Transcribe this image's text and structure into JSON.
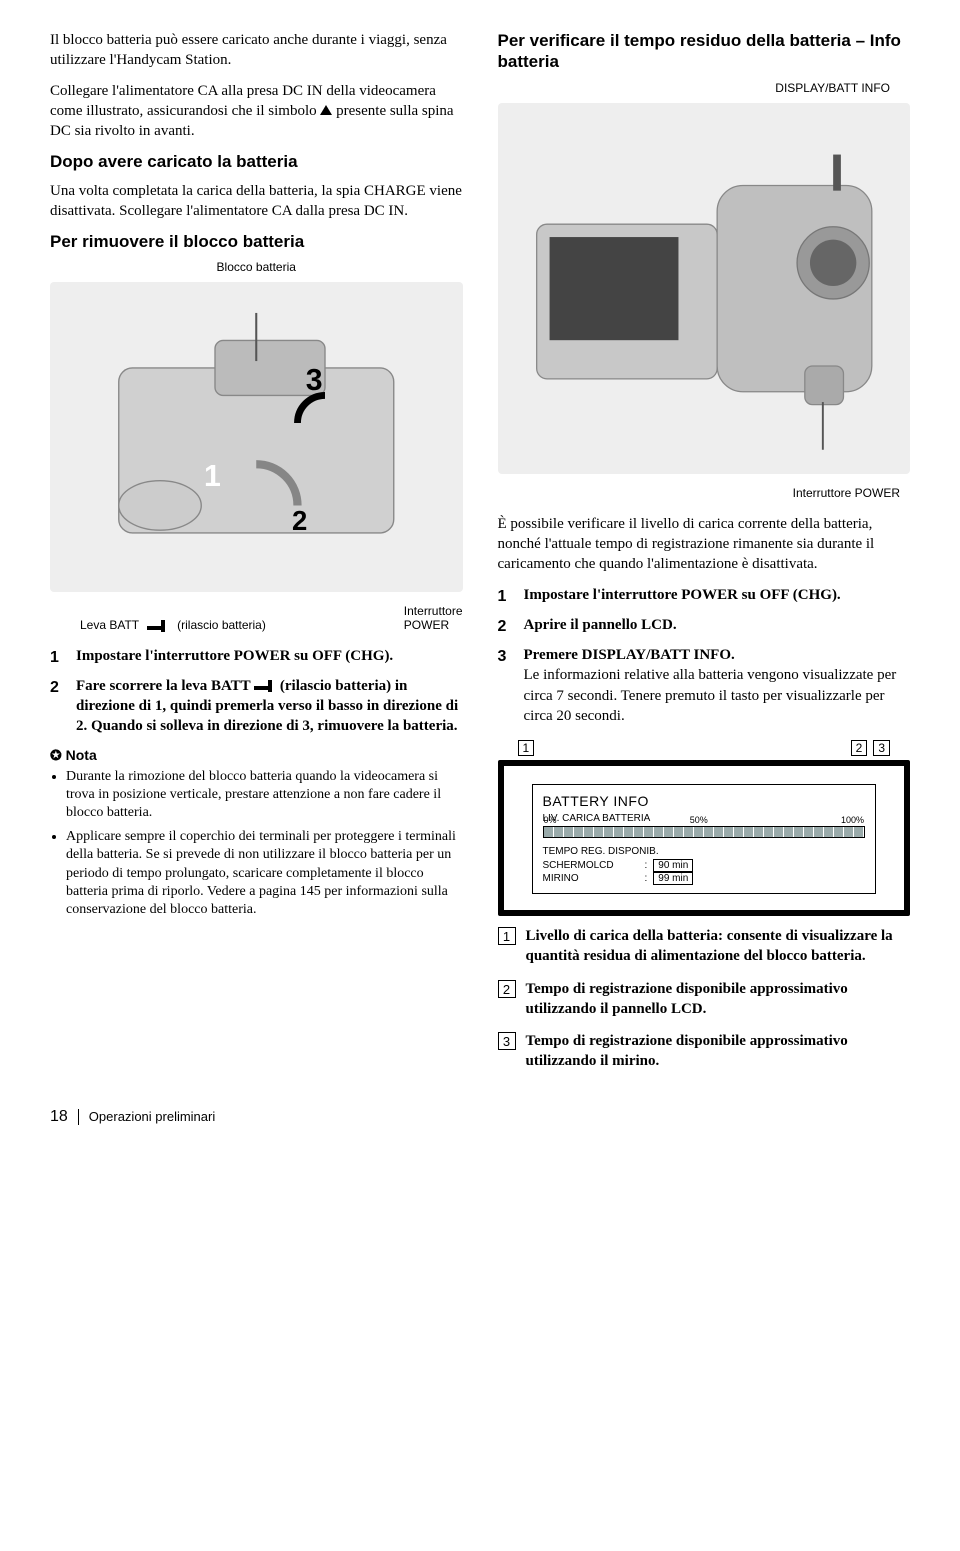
{
  "left": {
    "p1": "Il blocco batteria può essere caricato anche durante i viaggi, senza utilizzare l'Handycam Station.",
    "p2a": "Collegare l'alimentatore CA alla presa DC IN della videocamera come illustrato, assicurandosi che il simbolo ",
    "p2b": " presente sulla spina DC sia rivolto in avanti.",
    "h1": "Dopo avere caricato la batteria",
    "p3": "Una volta completata la carica della batteria, la spia CHARGE viene disattivata. Scollegare l'alimentatore CA dalla presa DC IN.",
    "h2": "Per rimuovere il blocco batteria",
    "cap1": "Blocco batteria",
    "imgText": "",
    "lab_power": "Interruttore\nPOWER",
    "lab_leva": "Leva BATT",
    "lab_rilascio": "(rilascio batteria)",
    "overlay3": "3",
    "overlay1": "1",
    "overlay2": "2",
    "step1": "Impostare l'interruttore POWER su OFF (CHG).",
    "step2a": "Fare scorrere la leva BATT ",
    "step2b": " (rilascio batteria) in direzione di 1, quindi premerla verso il basso in direzione di 2. Quando si solleva in direzione di 3, rimuovere la batteria.",
    "notaHead": "Nota",
    "nota1": "Durante la rimozione del blocco batteria quando la videocamera si trova in posizione verticale, prestare attenzione a non fare cadere il blocco batteria.",
    "nota2": "Applicare sempre il coperchio dei terminali per proteggere i terminali della batteria. Se si prevede di non utilizzare il blocco batteria per un periodo di tempo prolungato, scaricare completamente il blocco batteria prima di riporlo. Vedere a pagina 145 per informazioni sulla conservazione del blocco batteria."
  },
  "right": {
    "h1": "Per verificare il tempo residuo della batteria – Info batteria",
    "capTop": "DISPLAY/BATT INFO",
    "capBottom": "Interruttore POWER",
    "p1": "È possibile verificare il livello di carica corrente della batteria, nonché l'attuale tempo di registrazione rimanente sia durante il caricamento che quando l'alimentazione è disattivata.",
    "step1": "Impostare l'interruttore POWER su OFF (CHG).",
    "step2": "Aprire il pannello LCD.",
    "step3a": "Premere DISPLAY/BATT INFO.",
    "step3b": "Le informazioni relative alla batteria vengono visualizzate per circa 7 secondi. Tenere premuto il tasto per visualizzarle per circa 20 secondi.",
    "lcd": {
      "n1": "1",
      "n2": "2",
      "n3": "3",
      "title": "BATTERY INFO",
      "sub1": "LIV. CARICA BATTERIA",
      "p0": "0%",
      "p50": "50%",
      "p100": "100%",
      "fill_pct": 100,
      "sub2": "TEMPO REG. DISPONIB.",
      "r1l": "SCHERMOLCD",
      "r1v": "90 min",
      "r2l": "MIRINO",
      "r2v": "99 min"
    },
    "d1": "Livello di carica della batteria: consente di visualizzare la quantità residua di alimentazione del blocco batteria.",
    "d2": "Tempo di registrazione disponibile approssimativo utilizzando il pannello LCD.",
    "d3": "Tempo di registrazione disponibile approssimativo utilizzando il mirino."
  },
  "footer": {
    "page": "18",
    "section": "Operazioni preliminari"
  },
  "style": {
    "bar_fill_color": "#9aa0a6"
  }
}
